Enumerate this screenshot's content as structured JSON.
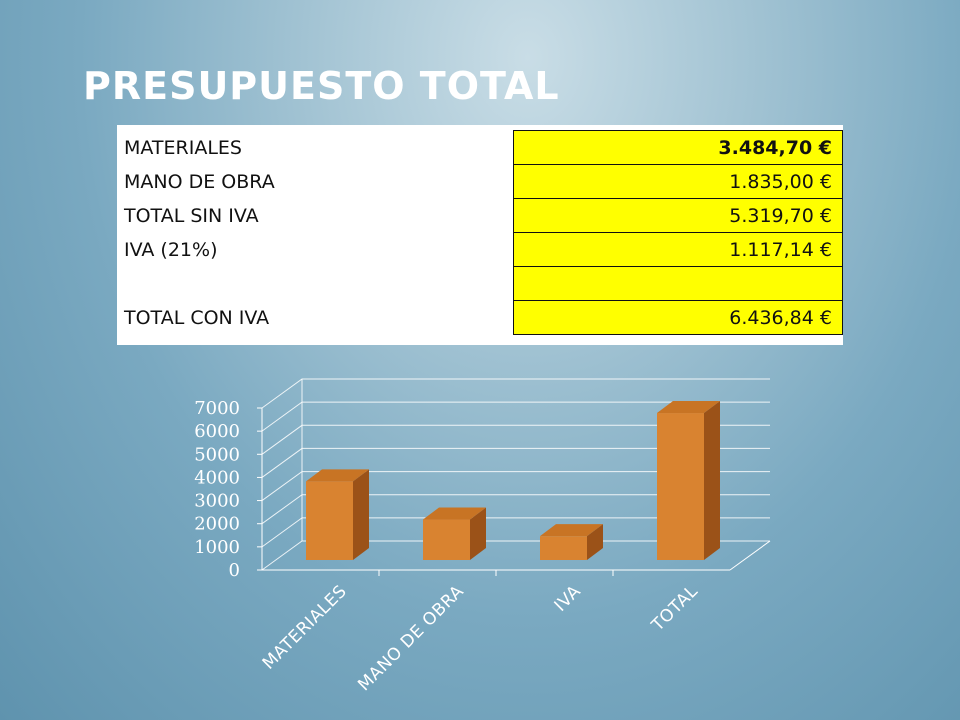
{
  "title": "PRESUPUESTO TOTAL",
  "table": {
    "rows": [
      {
        "label": "MATERIALES",
        "value": "3.484,70 €"
      },
      {
        "label": "MANO DE OBRA",
        "value": "1.835,00 €"
      },
      {
        "label": "TOTAL SIN IVA",
        "value": "5.319,70 €"
      },
      {
        "label": "IVA (21%)",
        "value": "1.117,14 €"
      },
      {
        "label": "",
        "value": ""
      },
      {
        "label": "TOTAL CON IVA",
        "value": "6.436,84 €"
      }
    ]
  },
  "colors": {
    "bar_front": "#d98330",
    "bar_side": "#9b5218",
    "bar_top": "#c87424",
    "table_highlight": "#ffff00",
    "grid": "#ffffff"
  },
  "chart_data": {
    "type": "bar",
    "categories": [
      "MATERIALES",
      "MANO DE OBRA",
      "IVA",
      "TOTAL"
    ],
    "values": [
      3484.7,
      1835.0,
      1117.14,
      6436.84
    ],
    "title": "",
    "xlabel": "",
    "ylabel": "",
    "ylim": [
      0,
      7000
    ],
    "yticks": [
      "0",
      "1000",
      "2000",
      "3000",
      "4000",
      "5000",
      "6000",
      "7000"
    ],
    "grid": true,
    "legend": "none"
  }
}
